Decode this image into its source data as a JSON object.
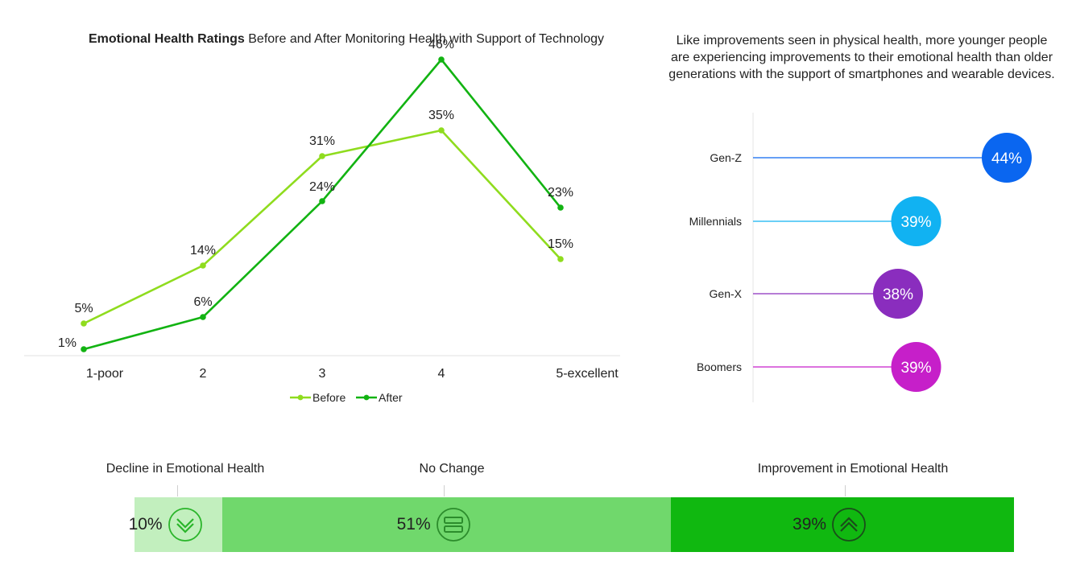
{
  "chart_data": [
    {
      "type": "line",
      "title_bold": "Emotional Health Ratings",
      "title_rest": " Before and After Monitoring Health with Support of Technology",
      "categories": [
        "1-poor",
        "2",
        "3",
        "4",
        "5-excellent"
      ],
      "series": [
        {
          "name": "Before",
          "values": [
            5,
            14,
            31,
            35,
            15
          ],
          "labels": [
            "5%",
            "14%",
            "31%",
            "35%",
            "15%"
          ],
          "color": "#8fdc1e"
        },
        {
          "name": "After",
          "values": [
            1,
            6,
            24,
            46,
            23
          ],
          "labels": [
            "1%",
            "6%",
            "24%",
            "46%",
            "23%"
          ],
          "color": "#12b312"
        }
      ],
      "ylim": [
        0,
        50
      ],
      "legend_position": "bottom-center",
      "grid": false
    },
    {
      "type": "bar",
      "title": "Like improvements seen in physical health, more younger people are experiencing improvements to their emotional health than older generations with the support of smartphones and wearable devices.",
      "categories": [
        "Gen-Z",
        "Millennials",
        "Gen-X",
        "Boomers"
      ],
      "values": [
        44,
        39,
        38,
        39
      ],
      "labels": [
        "44%",
        "39%",
        "38%",
        "39%"
      ],
      "colors": [
        "#0a66f0",
        "#11b2f2",
        "#8a2dbe",
        "#c61fc9"
      ],
      "style": "lollipop"
    },
    {
      "type": "bar",
      "style": "stacked-100",
      "categories": [
        "Decline in Emotional Health",
        "No Change",
        "Improvement in Emotional Health"
      ],
      "values": [
        10,
        51,
        39
      ],
      "labels": [
        "10%",
        "51%",
        "39%"
      ],
      "icons": [
        "chevron-down-icon",
        "equals-icon",
        "chevron-up-icon"
      ],
      "colors": [
        "#c2efbe",
        "#70d86c",
        "#10b810"
      ]
    }
  ]
}
